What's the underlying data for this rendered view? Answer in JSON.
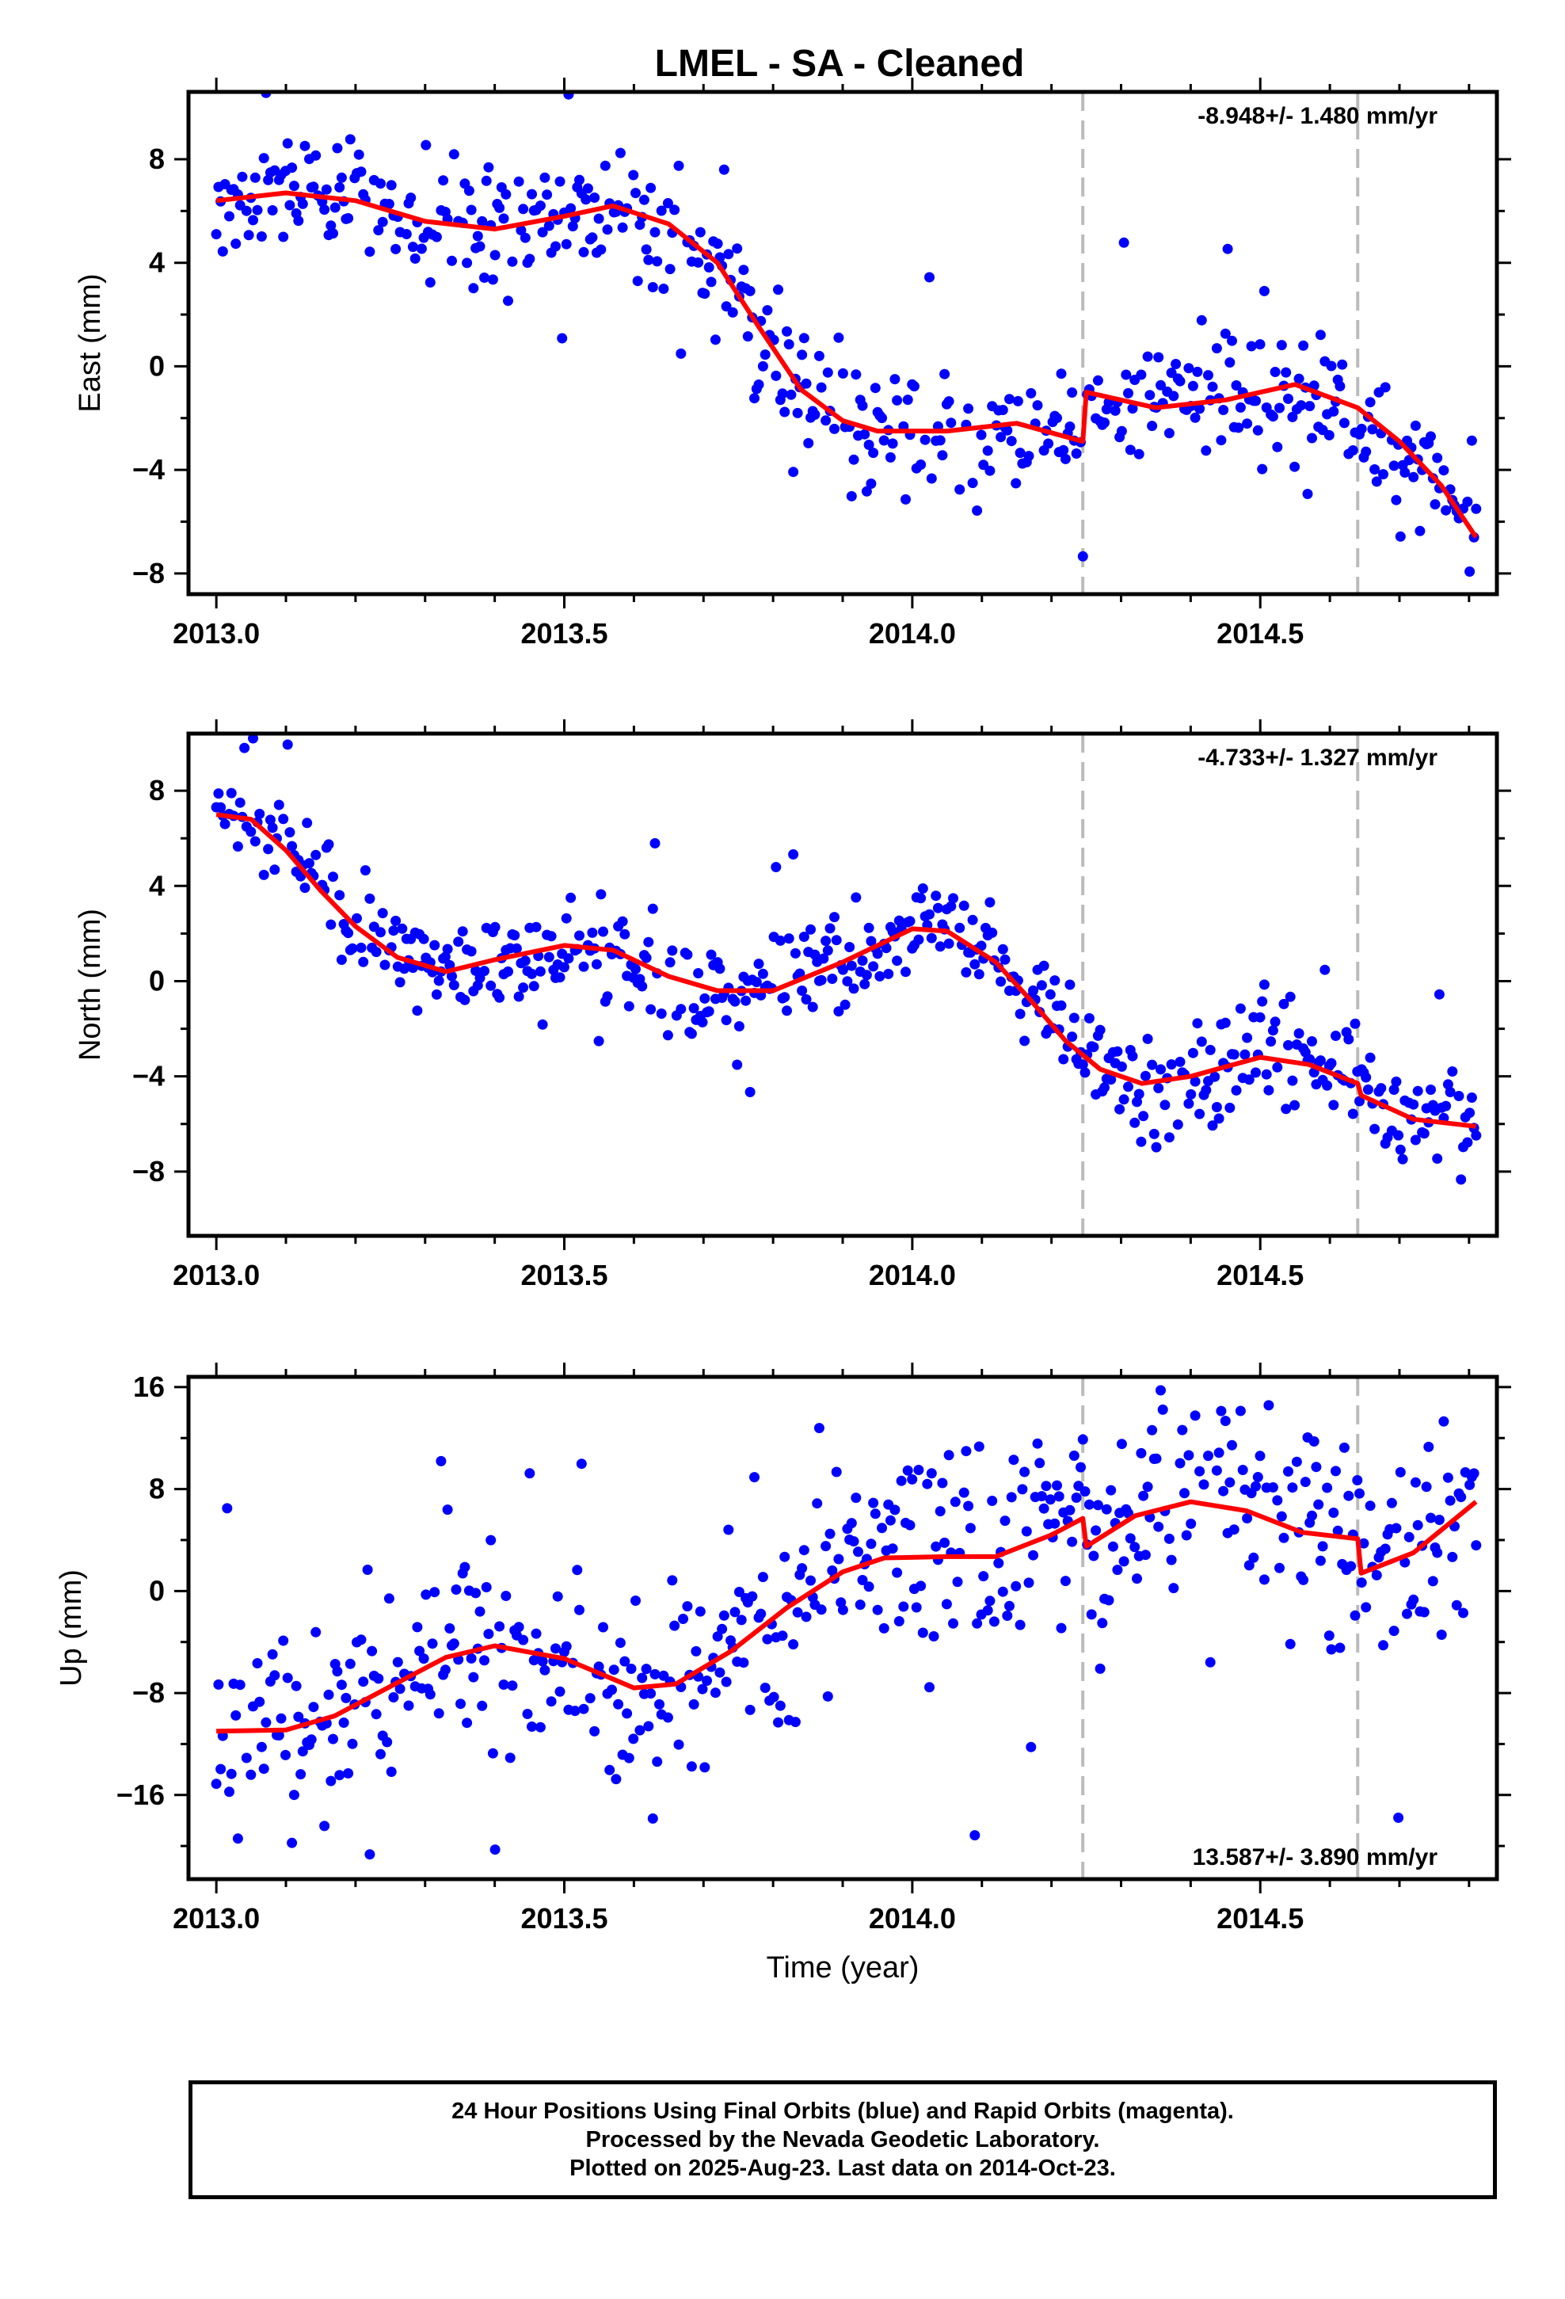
{
  "title": "LMEL  - SA - Cleaned",
  "footer": {
    "line1": "24 Hour Positions Using Final Orbits (blue) and Rapid Orbits (magenta).",
    "line2": "Processed by the Nevada Geodetic Laboratory.",
    "line3": "Plotted on 2025-Aug-23. Last data on 2014-Oct-23."
  },
  "colors": {
    "points": "#0000ff",
    "model": "#ff0000",
    "offsets": "#bbbbbb"
  },
  "chart_data": [
    {
      "type": "scatter",
      "ylabel": "East (mm)",
      "xlabel": "",
      "xlim": [
        2012.96,
        2014.84
      ],
      "ylim": [
        -8.8,
        10.6
      ],
      "xticks": [
        "2013.0",
        "2013.5",
        "2014.0",
        "2014.5"
      ],
      "yticks": [
        "8",
        "4",
        "0",
        "−4",
        "−8"
      ],
      "rate": "-8.948+/- 1.480 mm/yr",
      "rate_position": "top-right",
      "offsets_at": [
        2014.245,
        2014.64
      ],
      "model_knots": [
        [
          2013.0,
          6.4
        ],
        [
          2013.1,
          6.7
        ],
        [
          2013.2,
          6.4
        ],
        [
          2013.3,
          5.6
        ],
        [
          2013.4,
          5.3
        ],
        [
          2013.5,
          5.8
        ],
        [
          2013.57,
          6.2
        ],
        [
          2013.65,
          5.5
        ],
        [
          2013.72,
          4.0
        ],
        [
          2013.78,
          1.5
        ],
        [
          2013.84,
          -0.9
        ],
        [
          2013.9,
          -2.1
        ],
        [
          2013.95,
          -2.5
        ],
        [
          2014.05,
          -2.5
        ],
        [
          2014.15,
          -2.2
        ],
        [
          2014.245,
          -2.9
        ],
        [
          2014.25,
          -1.0
        ],
        [
          2014.35,
          -1.6
        ],
        [
          2014.45,
          -1.3
        ],
        [
          2014.55,
          -0.7
        ],
        [
          2014.64,
          -1.6
        ],
        [
          2014.7,
          -2.9
        ],
        [
          2014.76,
          -4.6
        ],
        [
          2014.81,
          -6.6
        ]
      ]
    },
    {
      "type": "scatter",
      "ylabel": "North (mm)",
      "xlabel": "",
      "xlim": [
        2012.96,
        2014.84
      ],
      "ylim": [
        -10.7,
        10.4
      ],
      "xticks": [
        "2013.0",
        "2013.5",
        "2014.0",
        "2014.5"
      ],
      "yticks": [
        "8",
        "4",
        "0",
        "−4",
        "−8"
      ],
      "rate": "-4.733+/- 1.327 mm/yr",
      "rate_position": "top-right",
      "offsets_at": [
        2014.245,
        2014.64
      ],
      "model_knots": [
        [
          2013.0,
          7.0
        ],
        [
          2013.05,
          6.8
        ],
        [
          2013.1,
          5.5
        ],
        [
          2013.15,
          3.8
        ],
        [
          2013.2,
          2.3
        ],
        [
          2013.26,
          1.0
        ],
        [
          2013.33,
          0.4
        ],
        [
          2013.4,
          0.9
        ],
        [
          2013.5,
          1.5
        ],
        [
          2013.57,
          1.3
        ],
        [
          2013.65,
          0.2
        ],
        [
          2013.72,
          -0.4
        ],
        [
          2013.8,
          -0.4
        ],
        [
          2013.9,
          0.8
        ],
        [
          2014.0,
          2.2
        ],
        [
          2014.05,
          2.1
        ],
        [
          2014.12,
          0.8
        ],
        [
          2014.17,
          -0.8
        ],
        [
          2014.22,
          -2.5
        ],
        [
          2014.27,
          -3.7
        ],
        [
          2014.33,
          -4.3
        ],
        [
          2014.4,
          -4.0
        ],
        [
          2014.5,
          -3.2
        ],
        [
          2014.57,
          -3.5
        ],
        [
          2014.64,
          -4.3
        ],
        [
          2014.645,
          -4.8
        ],
        [
          2014.72,
          -5.8
        ],
        [
          2014.81,
          -6.1
        ]
      ]
    },
    {
      "type": "scatter",
      "ylabel": "Up (mm)",
      "xlabel": "Time (year)",
      "xlim": [
        2012.96,
        2014.84
      ],
      "ylim": [
        -22.6,
        16.8
      ],
      "xticks": [
        "2013.0",
        "2013.5",
        "2014.0",
        "2014.5"
      ],
      "yticks": [
        "16",
        "8",
        "0",
        "−8",
        "−16"
      ],
      "rate": "13.587+/- 3.890 mm/yr",
      "rate_position": "bottom-right",
      "offsets_at": [
        2014.245,
        2014.64
      ],
      "model_knots": [
        [
          2013.0,
          -11.0
        ],
        [
          2013.1,
          -10.9
        ],
        [
          2013.17,
          -9.8
        ],
        [
          2013.26,
          -7.2
        ],
        [
          2013.33,
          -5.2
        ],
        [
          2013.4,
          -4.3
        ],
        [
          2013.5,
          -5.3
        ],
        [
          2013.6,
          -7.6
        ],
        [
          2013.66,
          -7.3
        ],
        [
          2013.74,
          -4.7
        ],
        [
          2013.82,
          -1.3
        ],
        [
          2013.9,
          1.5
        ],
        [
          2013.96,
          2.6
        ],
        [
          2014.05,
          2.7
        ],
        [
          2014.12,
          2.7
        ],
        [
          2014.2,
          4.4
        ],
        [
          2014.245,
          5.7
        ],
        [
          2014.25,
          3.5
        ],
        [
          2014.32,
          5.9
        ],
        [
          2014.4,
          7.0
        ],
        [
          2014.48,
          6.3
        ],
        [
          2014.56,
          4.6
        ],
        [
          2014.64,
          4.1
        ],
        [
          2014.645,
          1.4
        ],
        [
          2014.72,
          3.0
        ],
        [
          2014.81,
          7.0
        ]
      ]
    }
  ]
}
